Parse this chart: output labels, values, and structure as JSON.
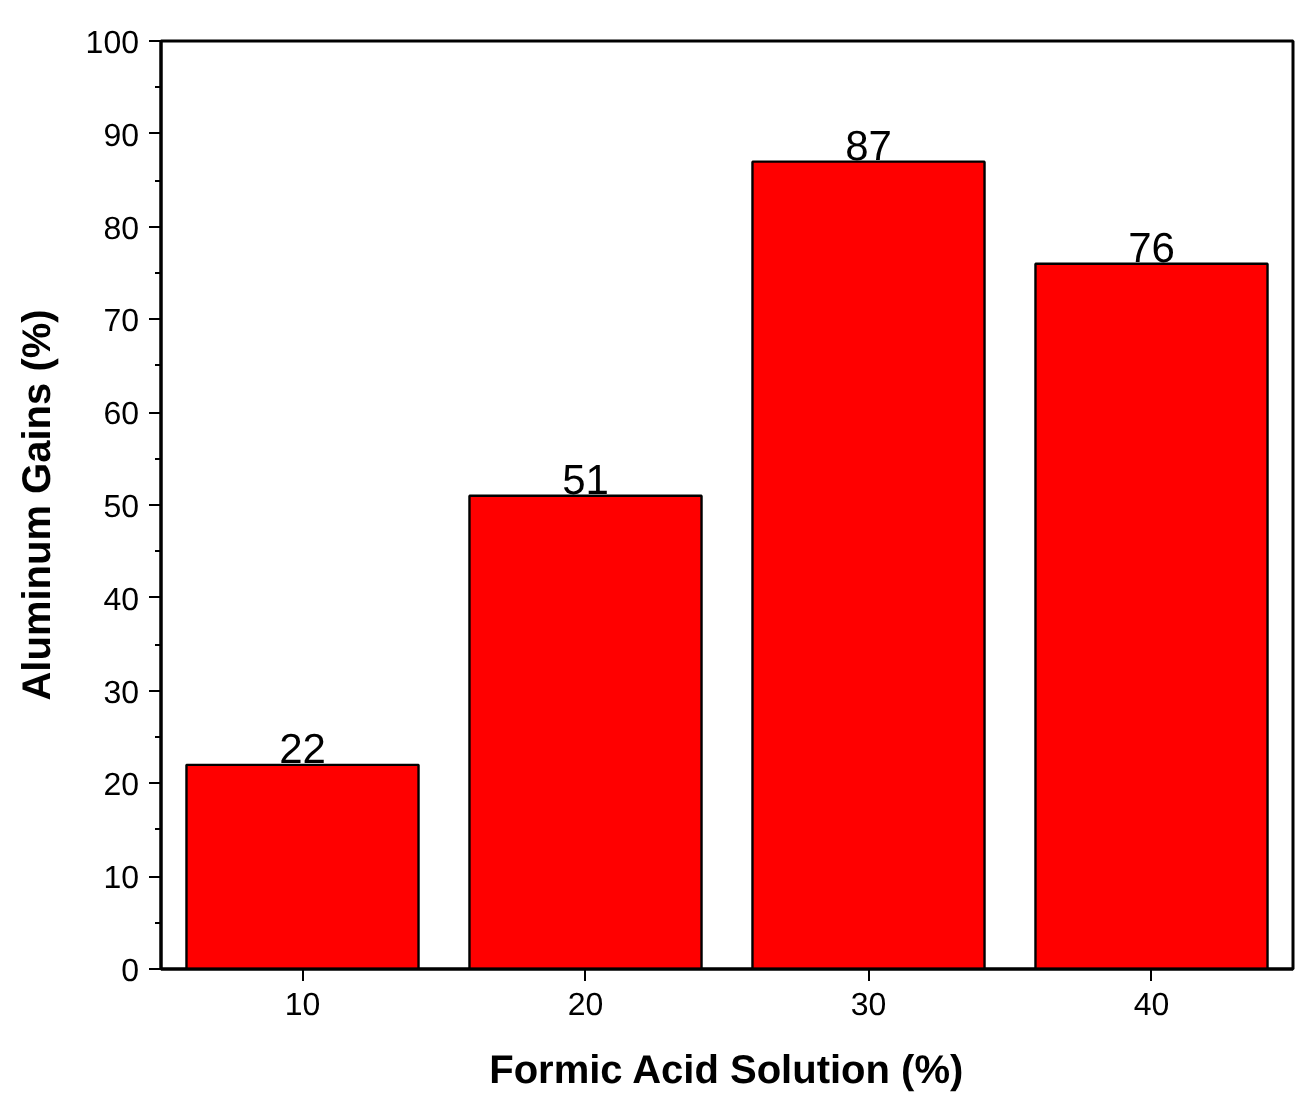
{
  "chart_data": {
    "type": "bar",
    "xlabel": "Formic Acid Solution (%)",
    "ylabel": "Aluminum Gains (%)",
    "categories": [
      "10",
      "20",
      "30",
      "40"
    ],
    "values": [
      22,
      51,
      87,
      76
    ],
    "color": "#ff0000",
    "ylim": [
      0,
      100
    ],
    "yticks": [
      0,
      10,
      20,
      30,
      40,
      50,
      60,
      70,
      80,
      90,
      100
    ],
    "data_labels": true,
    "grid": false
  }
}
